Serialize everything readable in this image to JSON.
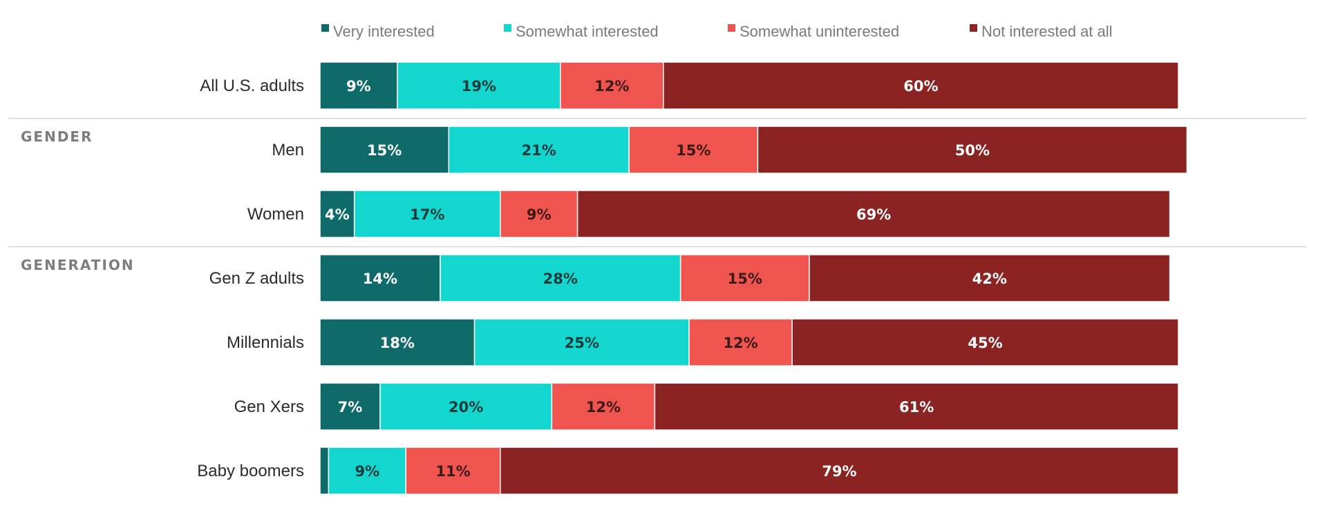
{
  "chart_data": {
    "type": "bar",
    "orientation": "horizontal",
    "stacked": true,
    "percent_scale": [
      0,
      100
    ],
    "legend_position": "top",
    "series": [
      {
        "name": "Very interested",
        "color": "#0e6b69",
        "label_color": "#ffffff"
      },
      {
        "name": "Somewhat interested",
        "color": "#13d6cf",
        "label_color": "#1f3b3a"
      },
      {
        "name": "Somewhat uninterested",
        "color": "#f0544f",
        "label_color": "#3a1a1a"
      },
      {
        "name": "Not interested at all",
        "color": "#8b2323",
        "label_color": "#ffffff"
      }
    ],
    "groups": [
      {
        "label": "",
        "rows": [
          {
            "label": "All U.S. adults",
            "values": [
              9,
              19,
              12,
              60
            ],
            "value_labels": [
              "9%",
              "19%",
              "12%",
              "60%"
            ]
          }
        ]
      },
      {
        "label": "GENDER",
        "rows": [
          {
            "label": "Men",
            "values": [
              15,
              21,
              15,
              50
            ],
            "value_labels": [
              "15%",
              "21%",
              "15%",
              "50%"
            ]
          },
          {
            "label": "Women",
            "values": [
              4,
              17,
              9,
              69
            ],
            "value_labels": [
              "4%",
              "17%",
              "9%",
              "69%"
            ]
          }
        ]
      },
      {
        "label": "GENERATION",
        "rows": [
          {
            "label": "Gen Z adults",
            "values": [
              14,
              28,
              15,
              42
            ],
            "value_labels": [
              "14%",
              "28%",
              "15%",
              "42%"
            ]
          },
          {
            "label": "Millennials",
            "values": [
              18,
              25,
              12,
              45
            ],
            "value_labels": [
              "18%",
              "25%",
              "12%",
              "45%"
            ]
          },
          {
            "label": "Gen Xers",
            "values": [
              7,
              20,
              12,
              61
            ],
            "value_labels": [
              "7%",
              "20%",
              "12%",
              "61%"
            ]
          },
          {
            "label": "Baby boomers",
            "values": [
              1,
              9,
              11,
              79
            ],
            "value_labels": [
              "",
              "9%",
              "11%",
              "79%"
            ]
          }
        ]
      }
    ]
  }
}
